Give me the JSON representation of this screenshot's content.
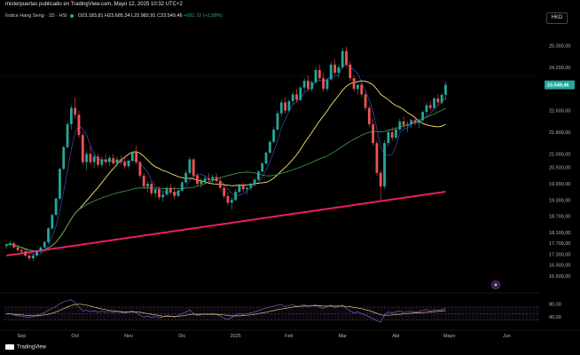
{
  "header": {
    "publisher": "misterpuertas publicado en TradingView.com, Mayo 12, 2025 10:32 UTC+2",
    "currency": "HKD"
  },
  "legend": {
    "symbol": "Índice Hang Seng · 1D · HSI",
    "open": "O23.183,81",
    "high": "H23.685,34",
    "low": "L22.982,91",
    "close": "C23.549,46",
    "change": "+681,72 (+2,98%)"
  },
  "footer": {
    "brand": "TradingView"
  },
  "colors": {
    "up": "#26a69a",
    "down": "#ef5350",
    "ma_fast": "#3f51b5",
    "ma_mid": "#fbe26a",
    "ma_slow": "#43a047",
    "ma_long": "#e91e63",
    "rsi": "#7e57c2",
    "rsi_ma": "#d4c36a"
  },
  "chart_data": [
    {
      "type": "candlestick",
      "title": "Índice Hang Seng · 1D · HSI",
      "y_ticks": [
        "25.000,00",
        "24.200,00",
        "22.600,00",
        "21.800,00",
        "21.000,00",
        "20.500,00",
        "19.900,00",
        "19.300,00",
        "18.700,00",
        "18.100,00",
        "17.700,00",
        "17.300,00",
        "16.900,00",
        "16.500,00"
      ],
      "y_tick_values": [
        25000,
        24200,
        22600,
        21800,
        21000,
        20500,
        19900,
        19300,
        18700,
        18100,
        17700,
        17300,
        16900,
        16500
      ],
      "ylim": [
        16200,
        25700
      ],
      "last_price_label": "23.549,46",
      "last_price": 23549.46,
      "x_labels": [
        "Sep",
        "Oct",
        "Nov",
        "Dic",
        "2025",
        "Feb",
        "Mar",
        "Abr",
        "Mayo",
        "Jun"
      ],
      "x_label_index": [
        4,
        18,
        32,
        46,
        60,
        74,
        88,
        102,
        116,
        131
      ],
      "x_count": 140,
      "candles": [
        [
          17600,
          17700,
          17500,
          17650
        ],
        [
          17650,
          17800,
          17550,
          17700
        ],
        [
          17700,
          17760,
          17500,
          17550
        ],
        [
          17550,
          17650,
          17400,
          17450
        ],
        [
          17450,
          17550,
          17300,
          17400
        ],
        [
          17400,
          17500,
          17200,
          17250
        ],
        [
          17250,
          17350,
          17050,
          17150
        ],
        [
          17150,
          17300,
          17050,
          17250
        ],
        [
          17250,
          17450,
          17200,
          17400
        ],
        [
          17400,
          17600,
          17350,
          17550
        ],
        [
          17550,
          17800,
          17500,
          17750
        ],
        [
          17750,
          18300,
          17700,
          18250
        ],
        [
          18250,
          18800,
          18200,
          18750
        ],
        [
          18750,
          19400,
          18700,
          19350
        ],
        [
          19350,
          20500,
          19300,
          20450
        ],
        [
          20450,
          21300,
          20400,
          21250
        ],
        [
          21250,
          22200,
          21200,
          22100
        ],
        [
          22100,
          22800,
          21900,
          22700
        ],
        [
          22700,
          23100,
          22300,
          22450
        ],
        [
          22450,
          22600,
          21600,
          21700
        ],
        [
          21700,
          21800,
          20600,
          20700
        ],
        [
          20700,
          21100,
          20400,
          21000
        ],
        [
          21000,
          21300,
          20600,
          20700
        ],
        [
          20700,
          21000,
          20500,
          20900
        ],
        [
          20900,
          21000,
          20500,
          20600
        ],
        [
          20600,
          20900,
          20500,
          20800
        ],
        [
          20800,
          21000,
          20600,
          20700
        ],
        [
          20700,
          20950,
          20550,
          20850
        ],
        [
          20850,
          21000,
          20600,
          20650
        ],
        [
          20650,
          20900,
          20550,
          20800
        ],
        [
          20800,
          20950,
          20600,
          20700
        ],
        [
          20700,
          20850,
          20450,
          20550
        ],
        [
          20550,
          20800,
          20450,
          20750
        ],
        [
          20750,
          21100,
          20700,
          21050
        ],
        [
          21050,
          21300,
          20600,
          20700
        ],
        [
          20700,
          20750,
          20100,
          20200
        ],
        [
          20200,
          20300,
          19700,
          19800
        ],
        [
          19800,
          20000,
          19600,
          19900
        ],
        [
          19900,
          20000,
          19450,
          19550
        ],
        [
          19550,
          19750,
          19400,
          19700
        ],
        [
          19700,
          19800,
          19300,
          19400
        ],
        [
          19400,
          19600,
          19250,
          19500
        ],
        [
          19500,
          19800,
          19450,
          19750
        ],
        [
          19750,
          19900,
          19500,
          19600
        ],
        [
          19600,
          19800,
          19350,
          19450
        ],
        [
          19450,
          19700,
          19400,
          19650
        ],
        [
          19650,
          20000,
          19600,
          19950
        ],
        [
          19950,
          20400,
          19900,
          20300
        ],
        [
          20300,
          20900,
          20250,
          20800
        ],
        [
          20800,
          20850,
          20100,
          20200
        ],
        [
          20200,
          20300,
          19800,
          19900
        ],
        [
          19900,
          20100,
          19750,
          20000
        ],
        [
          20000,
          20200,
          19900,
          20100
        ],
        [
          20100,
          20300,
          19950,
          20050
        ],
        [
          20050,
          20250,
          19900,
          20150
        ],
        [
          20150,
          20300,
          19950,
          20000
        ],
        [
          20000,
          20150,
          19700,
          19750
        ],
        [
          19750,
          19900,
          19350,
          19450
        ],
        [
          19450,
          19600,
          19100,
          19200
        ],
        [
          19200,
          19400,
          18950,
          19300
        ],
        [
          19300,
          19700,
          19250,
          19600
        ],
        [
          19600,
          19900,
          19550,
          19850
        ],
        [
          19850,
          19950,
          19600,
          19700
        ],
        [
          19700,
          19800,
          19500,
          19750
        ],
        [
          19750,
          19950,
          19650,
          19900
        ],
        [
          19900,
          20100,
          19800,
          20050
        ],
        [
          20050,
          20400,
          20000,
          20350
        ],
        [
          20350,
          20700,
          20300,
          20650
        ],
        [
          20650,
          21100,
          20600,
          21050
        ],
        [
          21050,
          21500,
          21000,
          21450
        ],
        [
          21450,
          22000,
          21400,
          21900
        ],
        [
          21900,
          22600,
          21850,
          22500
        ],
        [
          22500,
          23000,
          22400,
          22900
        ],
        [
          22900,
          23100,
          22500,
          22600
        ],
        [
          22600,
          23000,
          22550,
          22950
        ],
        [
          22950,
          23300,
          22800,
          23200
        ],
        [
          23200,
          23400,
          22900,
          23000
        ],
        [
          23000,
          23500,
          22950,
          23450
        ],
        [
          23450,
          23800,
          23300,
          23700
        ],
        [
          23700,
          23900,
          23350,
          23400
        ],
        [
          23400,
          23700,
          23300,
          23650
        ],
        [
          23650,
          24200,
          23600,
          24100
        ],
        [
          24100,
          24300,
          23700,
          23800
        ],
        [
          23800,
          24000,
          23300,
          23400
        ],
        [
          23400,
          23800,
          23300,
          23750
        ],
        [
          23750,
          24400,
          23700,
          24300
        ],
        [
          24300,
          24500,
          23900,
          24000
        ],
        [
          24000,
          24300,
          23800,
          24200
        ],
        [
          24200,
          24900,
          24150,
          24800
        ],
        [
          24800,
          24950,
          24200,
          24300
        ],
        [
          24300,
          24400,
          23700,
          23800
        ],
        [
          23800,
          23900,
          23300,
          23400
        ],
        [
          23400,
          23600,
          23200,
          23550
        ],
        [
          23550,
          23650,
          23100,
          23200
        ],
        [
          23200,
          23300,
          22600,
          22700
        ],
        [
          22700,
          22800,
          22000,
          22100
        ],
        [
          22100,
          22300,
          21300,
          21400
        ],
        [
          21400,
          21500,
          20200,
          20300
        ],
        [
          20300,
          20400,
          19300,
          19800
        ],
        [
          19800,
          21500,
          19700,
          21400
        ],
        [
          21400,
          21900,
          21300,
          21800
        ],
        [
          21800,
          22000,
          21500,
          21600
        ],
        [
          21600,
          22000,
          21550,
          21900
        ],
        [
          21900,
          22300,
          21850,
          22200
        ],
        [
          22200,
          22400,
          21950,
          22050
        ],
        [
          22050,
          22200,
          21800,
          22100
        ],
        [
          22100,
          22300,
          21950,
          22250
        ],
        [
          22250,
          22400,
          22050,
          22150
        ],
        [
          22150,
          22300,
          21950,
          22250
        ],
        [
          22250,
          22600,
          22200,
          22550
        ],
        [
          22550,
          22900,
          22450,
          22800
        ],
        [
          22800,
          22950,
          22600,
          22700
        ],
        [
          22700,
          23100,
          22650,
          23050
        ],
        [
          23050,
          23200,
          22800,
          22900
        ],
        [
          22900,
          23250,
          22850,
          23183
        ],
        [
          23183,
          23685,
          22983,
          23549
        ]
      ]
    },
    {
      "type": "line",
      "title": "RSI",
      "y_ticks": [
        "80,00",
        "40,00"
      ],
      "y_tick_values": [
        80,
        40
      ],
      "ylim": [
        10,
        100
      ],
      "levels": [
        70,
        50,
        30
      ],
      "series": [
        {
          "values": [
            48,
            50,
            46,
            43,
            42,
            40,
            38,
            41,
            45,
            49,
            53,
            60,
            66,
            72,
            80,
            86,
            90,
            92,
            84,
            70,
            58,
            60,
            56,
            58,
            55,
            57,
            55,
            57,
            53,
            56,
            54,
            51,
            55,
            58,
            52,
            44,
            39,
            42,
            38,
            41,
            37,
            40,
            45,
            42,
            39,
            44,
            50,
            55,
            61,
            50,
            44,
            47,
            49,
            48,
            50,
            47,
            42,
            36,
            32,
            38,
            45,
            50,
            47,
            49,
            52,
            55,
            59,
            63,
            67,
            70,
            73,
            76,
            78,
            72,
            75,
            77,
            72,
            75,
            77,
            72,
            74,
            77,
            70,
            66,
            72,
            76,
            68,
            72,
            76,
            66,
            58,
            52,
            55,
            50,
            45,
            40,
            35,
            28,
            24,
            46,
            55,
            52,
            55,
            58,
            53,
            55,
            57,
            54,
            56,
            60,
            63,
            58,
            62,
            59,
            63,
            66
          ]
        },
        {
          "values": [
            49,
            49,
            48,
            47,
            46,
            45,
            44,
            43,
            43,
            44,
            46,
            48,
            51,
            55,
            60,
            65,
            70,
            75,
            78,
            79,
            78,
            76,
            73,
            70,
            67,
            64,
            62,
            60,
            58,
            57,
            56,
            55,
            55,
            55,
            55,
            54,
            52,
            50,
            48,
            46,
            44,
            42,
            41,
            41,
            41,
            42,
            43,
            45,
            47,
            48,
            48,
            48,
            48,
            48,
            48,
            48,
            47,
            46,
            44,
            43,
            43,
            43,
            44,
            45,
            46,
            48,
            50,
            52,
            54,
            57,
            59,
            62,
            64,
            66,
            68,
            70,
            71,
            72,
            73,
            73,
            74,
            74,
            74,
            73,
            73,
            73,
            73,
            73,
            73,
            72,
            71,
            69,
            67,
            65,
            62,
            59,
            55,
            51,
            46,
            45,
            45,
            46,
            47,
            48,
            49,
            50,
            51,
            52,
            52,
            53,
            54,
            55,
            56,
            57,
            58,
            59
          ]
        }
      ]
    }
  ]
}
